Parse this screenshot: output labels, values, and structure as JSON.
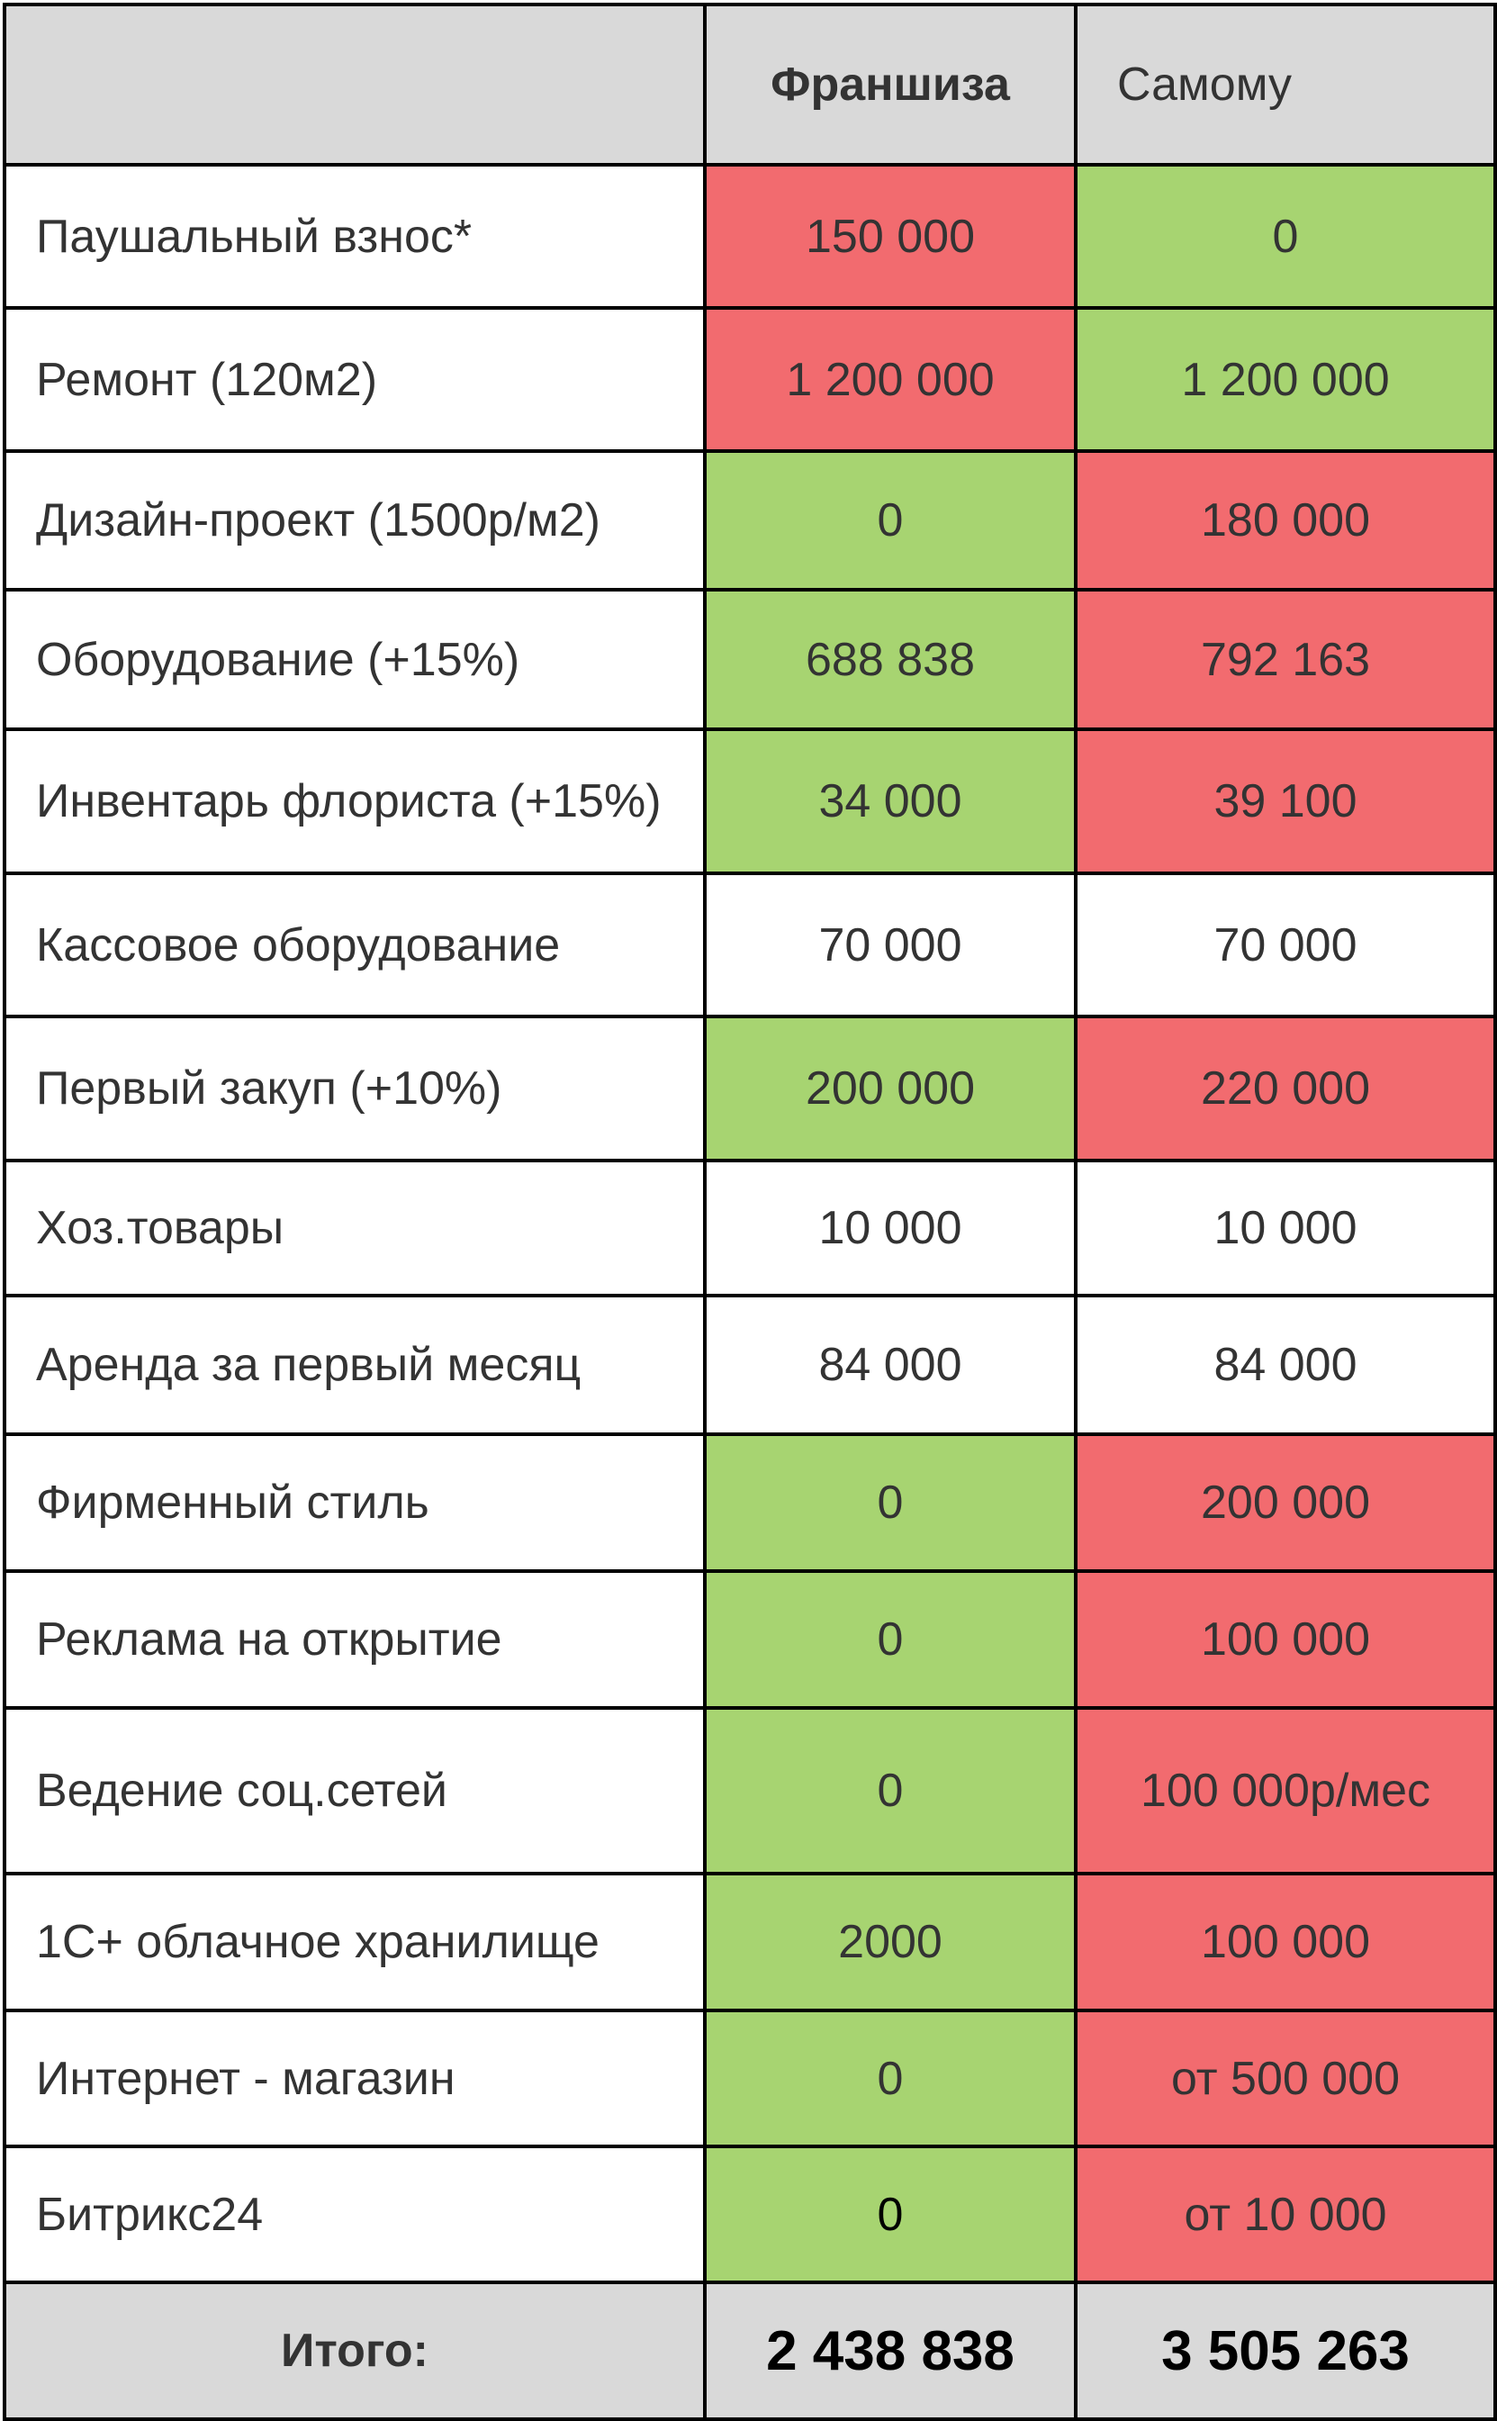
{
  "header": {
    "col1": "",
    "col2": "Франшиза",
    "col3": "Самому"
  },
  "rows": [
    {
      "label": "Паушальный взнос*",
      "franchise": "150 000",
      "self": "0",
      "franchise_color": "#f26b6f",
      "self_color": "#a7d471"
    },
    {
      "label": "Ремонт (120м2)",
      "franchise": "1 200 000",
      "self": "1 200 000",
      "franchise_color": "#f26b6f",
      "self_color": "#a7d471"
    },
    {
      "label": "Дизайн-проект (1500р/м2)",
      "franchise": "0",
      "self": "180 000",
      "franchise_color": "#a7d471",
      "self_color": "#f26b6f"
    },
    {
      "label": "Оборудование (+15%)",
      "franchise": "688 838",
      "self": "792 163",
      "franchise_color": "#a7d471",
      "self_color": "#f26b6f"
    },
    {
      "label": "Инвентарь флориста (+15%)",
      "franchise": "34 000",
      "self": "39 100",
      "franchise_color": "#a7d471",
      "self_color": "#f26b6f"
    },
    {
      "label": "Кассовое оборудование",
      "franchise": "70 000",
      "self": "70 000",
      "franchise_color": "#ffffff",
      "self_color": "#ffffff"
    },
    {
      "label": "Первый закуп (+10%)",
      "franchise": "200 000",
      "self": "220 000",
      "franchise_color": "#a7d471",
      "self_color": "#f26b6f"
    },
    {
      "label": "Хоз.товары",
      "franchise": "10 000",
      "self": "10 000",
      "franchise_color": "#ffffff",
      "self_color": "#ffffff"
    },
    {
      "label": "Аренда за первый месяц",
      "franchise": "84 000",
      "self": "84 000",
      "franchise_color": "#ffffff",
      "self_color": "#ffffff"
    },
    {
      "label": "Фирменный стиль",
      "franchise": "0",
      "self": "200 000",
      "franchise_color": "#a7d471",
      "self_color": "#f26b6f"
    },
    {
      "label": "Реклама на открытие",
      "franchise": "0",
      "self": "100 000",
      "franchise_color": "#a7d471",
      "self_color": "#f26b6f"
    },
    {
      "label": "Ведение соц.сетей",
      "franchise": "0",
      "self": "100 000р/мес",
      "franchise_color": "#a7d471",
      "self_color": "#f26b6f"
    },
    {
      "label": "1С+ облачное хранилище",
      "franchise": "2000",
      "self": "100 000",
      "franchise_color": "#a7d471",
      "self_color": "#f26b6f"
    },
    {
      "label": "Интернет - магазин",
      "franchise": "0",
      "self": "от 500 000",
      "franchise_color": "#a7d471",
      "self_color": "#f26b6f"
    },
    {
      "label": "Битрикс24",
      "franchise": "0",
      "self": "от 10 000",
      "franchise_color": "#a7d471",
      "self_color": "#f26b6f"
    }
  ],
  "total": {
    "label": "Итого:",
    "franchise": "2 438 838",
    "self": "3 505 263"
  }
}
